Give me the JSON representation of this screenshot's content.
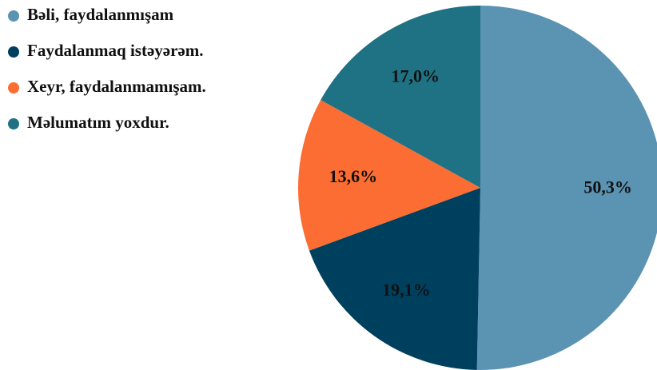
{
  "chart_data": {
    "type": "pie",
    "categories": [
      "Bəli, faydalanmışam",
      "Faydalanmaq istəyərəm.",
      "Xeyr, faydalanmamışam.",
      "Məlumatım yoxdur."
    ],
    "values": [
      50.3,
      19.1,
      13.6,
      17.0
    ],
    "value_labels": [
      "50,3%",
      "19,1%",
      "13,6%",
      "17,0%"
    ],
    "colors": [
      "#5b93b3",
      "#00405f",
      "#fb6d32",
      "#1f7283"
    ],
    "legend": "top-left"
  }
}
